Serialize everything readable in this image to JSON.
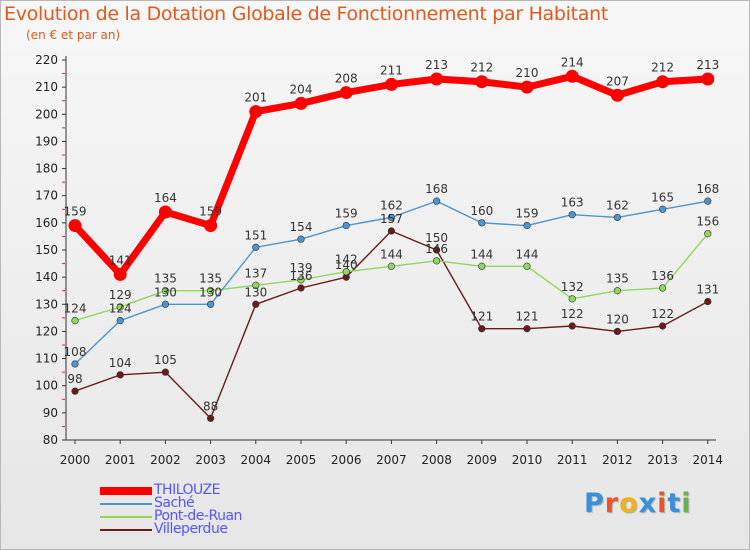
{
  "title": "Evolution de la Dotation Globale de Fonctionnement par Habitant",
  "subtitle": "(en € et par an)",
  "logo_text": "Proxiti",
  "logo_colors": [
    "#3a8fd8",
    "#e8552a",
    "#f0b020",
    "#3a8fd8",
    "#e8552a",
    "#3a8fd8",
    "#6ab04c"
  ],
  "chart_data": {
    "type": "line",
    "title": "Evolution de la Dotation Globale de Fonctionnement par Habitant",
    "subtitle": "(en € et par an)",
    "xlabel": "",
    "ylabel": "",
    "x": [
      "2000",
      "2001",
      "2002",
      "2003",
      "2004",
      "2005",
      "2006",
      "2007",
      "2008",
      "2009",
      "2010",
      "2011",
      "2012",
      "2013",
      "2014"
    ],
    "ylim": [
      80,
      220
    ],
    "yticks": [
      80,
      90,
      100,
      110,
      120,
      130,
      140,
      150,
      160,
      170,
      180,
      190,
      200,
      210,
      220
    ],
    "grid": false,
    "legend": "bottom-left",
    "series": [
      {
        "name": "THILOUZE",
        "color": "#ff0000",
        "values": [
          159,
          141,
          164,
          159,
          201,
          204,
          208,
          211,
          213,
          212,
          210,
          214,
          207,
          212,
          213
        ]
      },
      {
        "name": "Saché",
        "color": "#4f94cd",
        "values": [
          108,
          124,
          130,
          130,
          151,
          154,
          159,
          162,
          168,
          160,
          159,
          163,
          162,
          165,
          168
        ]
      },
      {
        "name": "Pont-de-Ruan",
        "color": "#8fd85a",
        "values": [
          124,
          129,
          135,
          135,
          137,
          139,
          142,
          144,
          146,
          144,
          144,
          132,
          135,
          136,
          156
        ]
      },
      {
        "name": "Villeperdue",
        "color": "#6b1a1a",
        "values": [
          98,
          104,
          105,
          88,
          130,
          136,
          140,
          157,
          150,
          121,
          121,
          122,
          120,
          122,
          131
        ]
      }
    ]
  }
}
